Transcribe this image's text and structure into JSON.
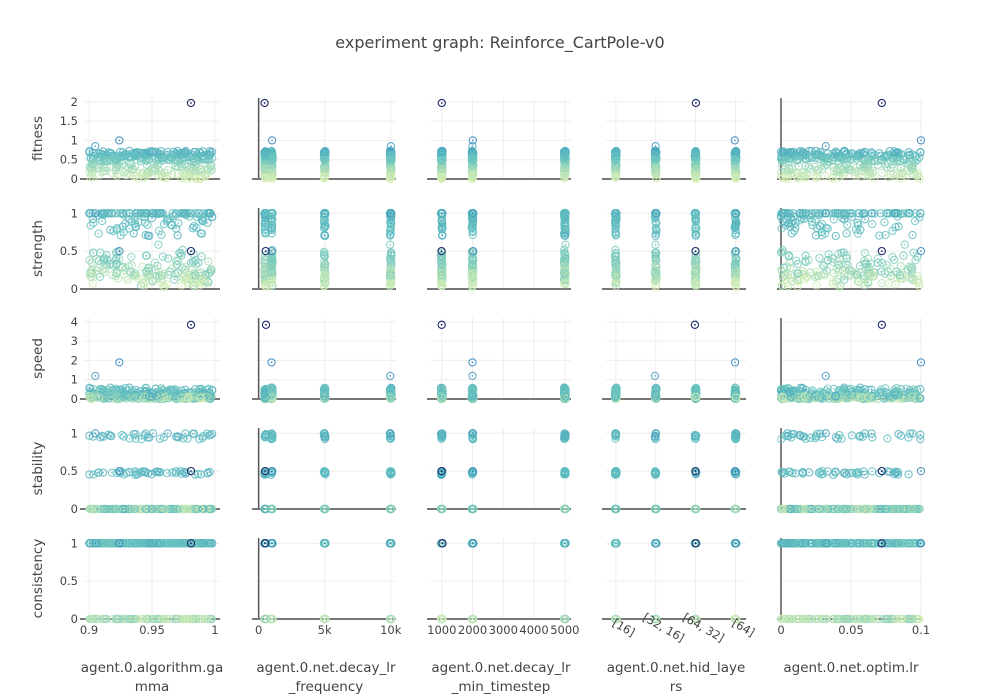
{
  "chart_data": {
    "type": "scatter",
    "title": "experiment graph: Reinforce_CartPole-v0",
    "layout": "scatter-matrix",
    "rows": [
      {
        "name": "fitness",
        "label": "fitness",
        "ylim": [
          0,
          2.1
        ],
        "ticks": [
          0,
          0.5,
          1,
          1.5,
          2
        ],
        "tick_labels": [
          "0",
          "0.5",
          "1",
          "1.5",
          "2"
        ]
      },
      {
        "name": "strength",
        "label": "strength",
        "ylim": [
          0,
          1.07
        ],
        "ticks": [
          0,
          0.5,
          1
        ],
        "tick_labels": [
          "0",
          "0.5",
          "1"
        ]
      },
      {
        "name": "speed",
        "label": "speed",
        "ylim": [
          0,
          4.2
        ],
        "ticks": [
          0,
          1,
          2,
          3,
          4
        ],
        "tick_labels": [
          "0",
          "1",
          "2",
          "3",
          "4"
        ]
      },
      {
        "name": "stability",
        "label": "stability",
        "ylim": [
          0,
          1.07
        ],
        "ticks": [
          0,
          0.5,
          1
        ],
        "tick_labels": [
          "0",
          "0.5",
          "1"
        ]
      },
      {
        "name": "consistency",
        "label": "consistency",
        "ylim": [
          0,
          1.07
        ],
        "ticks": [
          0,
          0.5,
          1
        ],
        "tick_labels": [
          "0",
          "0.5",
          "1"
        ]
      }
    ],
    "columns": [
      {
        "name": "agent.0.algorithm.gamma",
        "label_lines": [
          "agent.0.algorithm.ga",
          "mma"
        ],
        "kind": "linear",
        "xlim": [
          0.896,
          1.004
        ],
        "ticks": [
          0.9,
          0.95,
          1
        ],
        "tick_labels": [
          "0.9",
          "0.95",
          "1"
        ]
      },
      {
        "name": "agent.0.net.decay_lr_frequency",
        "label_lines": [
          "agent.0.net.decay_lr",
          "_frequency"
        ],
        "kind": "linear",
        "xlim": [
          -200,
          10400
        ],
        "ticks": [
          0,
          5000,
          10000
        ],
        "tick_labels": [
          "0",
          "5k",
          "10k"
        ],
        "values": [
          500,
          1000,
          5000,
          10000
        ]
      },
      {
        "name": "agent.0.net.decay_lr_min_timestep",
        "label_lines": [
          "agent.0.net.decay_lr",
          "_min_timestep"
        ],
        "kind": "linear",
        "xlim": [
          650,
          5200
        ],
        "ticks": [
          1000,
          2000,
          3000,
          4000,
          5000
        ],
        "tick_labels": [
          "1000",
          "2000",
          "3000",
          "4000",
          "5000"
        ],
        "values": [
          1000,
          2000,
          5000
        ]
      },
      {
        "name": "agent.0.net.hid_layers",
        "label_lines": [
          "agent.0.net.hid_laye",
          "rs"
        ],
        "kind": "category",
        "categories": [
          "[16]",
          "[32, 16]",
          "[64, 32]",
          "[64]"
        ],
        "tick_labels": [
          "[16]",
          "[32, 16]",
          "[64, 32]",
          "[64]"
        ]
      },
      {
        "name": "agent.0.net.optim.lr",
        "label_lines": [
          "agent.0.net.optim.lr"
        ],
        "kind": "linear",
        "xlim": [
          0,
          0.1
        ],
        "ticks": [
          0,
          0.05,
          0.1
        ],
        "tick_labels": [
          "0",
          "0.05",
          "0.1"
        ]
      }
    ],
    "color_scale": {
      "low": "#d9f0b4",
      "mid": "#5fbfc0",
      "high": "#2c7fb8",
      "best": "#1c2a6b"
    },
    "color_by": "fitness",
    "best_trial": {
      "agent.0.algorithm.gamma": 0.981,
      "agent.0.net.decay_lr_frequency": 500,
      "agent.0.net.decay_lr_min_timestep": 1000,
      "agent.0.net.hid_layers": "[64, 32]",
      "agent.0.net.optim.lr": 0.072,
      "fitness": 1.97,
      "strength": 0.5,
      "speed": 3.85,
      "stability": 0.5,
      "consistency": 1
    },
    "notable_trials": [
      {
        "agent.0.algorithm.gamma": 0.924,
        "agent.0.net.decay_lr_frequency": 1000,
        "agent.0.net.decay_lr_min_timestep": 2000,
        "agent.0.net.hid_layers": "[64]",
        "agent.0.net.optim.lr": 0.1,
        "fitness": 1.0,
        "strength": 0.5,
        "speed": 1.9,
        "stability": 0.5,
        "consistency": 1
      },
      {
        "agent.0.algorithm.gamma": 0.905,
        "agent.0.net.decay_lr_frequency": 10000,
        "agent.0.net.decay_lr_min_timestep": 2000,
        "agent.0.net.hid_layers": "[32, 16]",
        "agent.0.net.optim.lr": 0.032,
        "fitness": 0.85,
        "strength": 1.0,
        "speed": 1.2,
        "stability": 1.0,
        "consistency": 1
      }
    ],
    "n_trials_approx": 300,
    "grid": true,
    "legend": "none"
  }
}
